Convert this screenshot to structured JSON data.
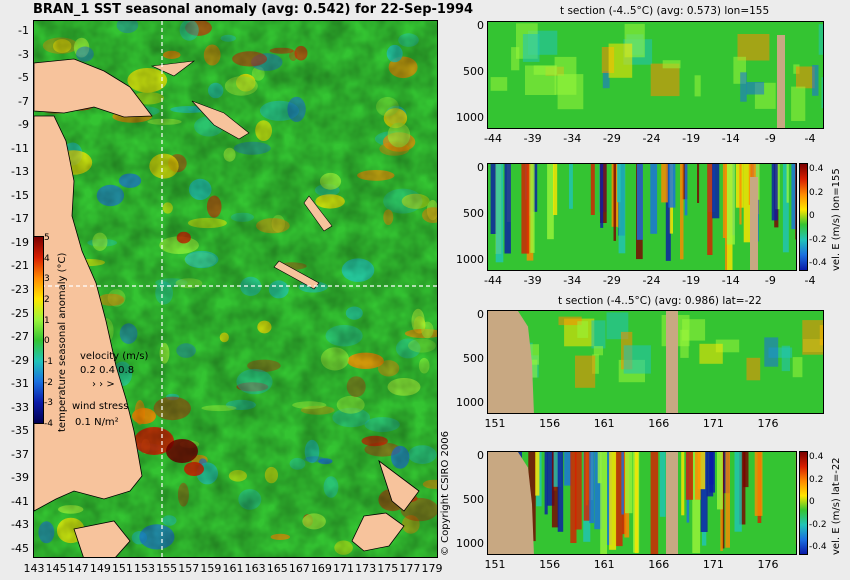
{
  "main_title": "BRAN_1 SST seasonal anomaly (avg: 0.542) for 22-Sep-1994",
  "map": {
    "lat_ticks": [
      "-1",
      "-3",
      "-5",
      "-7",
      "-9",
      "-11",
      "-13",
      "-15",
      "-17",
      "-19",
      "-21",
      "-23",
      "-25",
      "-27",
      "-29",
      "-31",
      "-33",
      "-35",
      "-37",
      "-39",
      "-41",
      "-43",
      "-45"
    ],
    "lon_ticks": [
      "143",
      "145",
      "147",
      "149",
      "151",
      "153",
      "155",
      "157",
      "159",
      "161",
      "163",
      "165",
      "167",
      "169",
      "171",
      "173",
      "175",
      "177",
      "179"
    ],
    "colorbar_ticks": [
      "5",
      "4",
      "3",
      "2",
      "1",
      "0",
      "-1",
      "-2",
      "-3",
      "-4"
    ],
    "colorbar_label": "temperature seasonal anomaly (°C)",
    "velocity_label": "velocity (m/s)",
    "velocity_scale": "0.2 0.4 0.8",
    "wind_label": "wind stress",
    "wind_scale": "0.1 N/m²",
    "colors": {
      "land": "#f7c39c",
      "ocean_base": "#34c432",
      "guide_line": "#ffffff"
    }
  },
  "copyright": "© Copyright CSIRO 2006",
  "panels": [
    {
      "title": "t section (-4..5°C) (avg: 0.573) lon=155",
      "y_ticks": [
        "0",
        "500",
        "1000"
      ],
      "x_ticks": [
        "-44",
        "-39",
        "-34",
        "-29",
        "-24",
        "-19",
        "-14",
        "-9",
        "-4"
      ]
    },
    {
      "title": "",
      "y_ticks": [
        "0",
        "500",
        "1000"
      ],
      "x_ticks": [
        "-44",
        "-39",
        "-34",
        "-29",
        "-24",
        "-19",
        "-14",
        "-9",
        "-4"
      ],
      "side_label": "vel. E (m/s) lon=155",
      "colorbar_ticks": [
        "0.4",
        "0.2",
        "0",
        "-0.2",
        "-0.4"
      ]
    },
    {
      "title": "t section (-4..5°C) (avg: 0.986) lat=-22",
      "y_ticks": [
        "0",
        "500",
        "1000"
      ],
      "x_ticks": [
        "151",
        "156",
        "161",
        "166",
        "171",
        "176"
      ]
    },
    {
      "title": "",
      "y_ticks": [
        "0",
        "500",
        "1000"
      ],
      "x_ticks": [
        "151",
        "156",
        "161",
        "166",
        "171",
        "176"
      ],
      "side_label": "vel. E (m/s) lat=-22",
      "colorbar_ticks": [
        "0.4",
        "0.2",
        "0",
        "-0.2",
        "-0.4"
      ]
    }
  ]
}
